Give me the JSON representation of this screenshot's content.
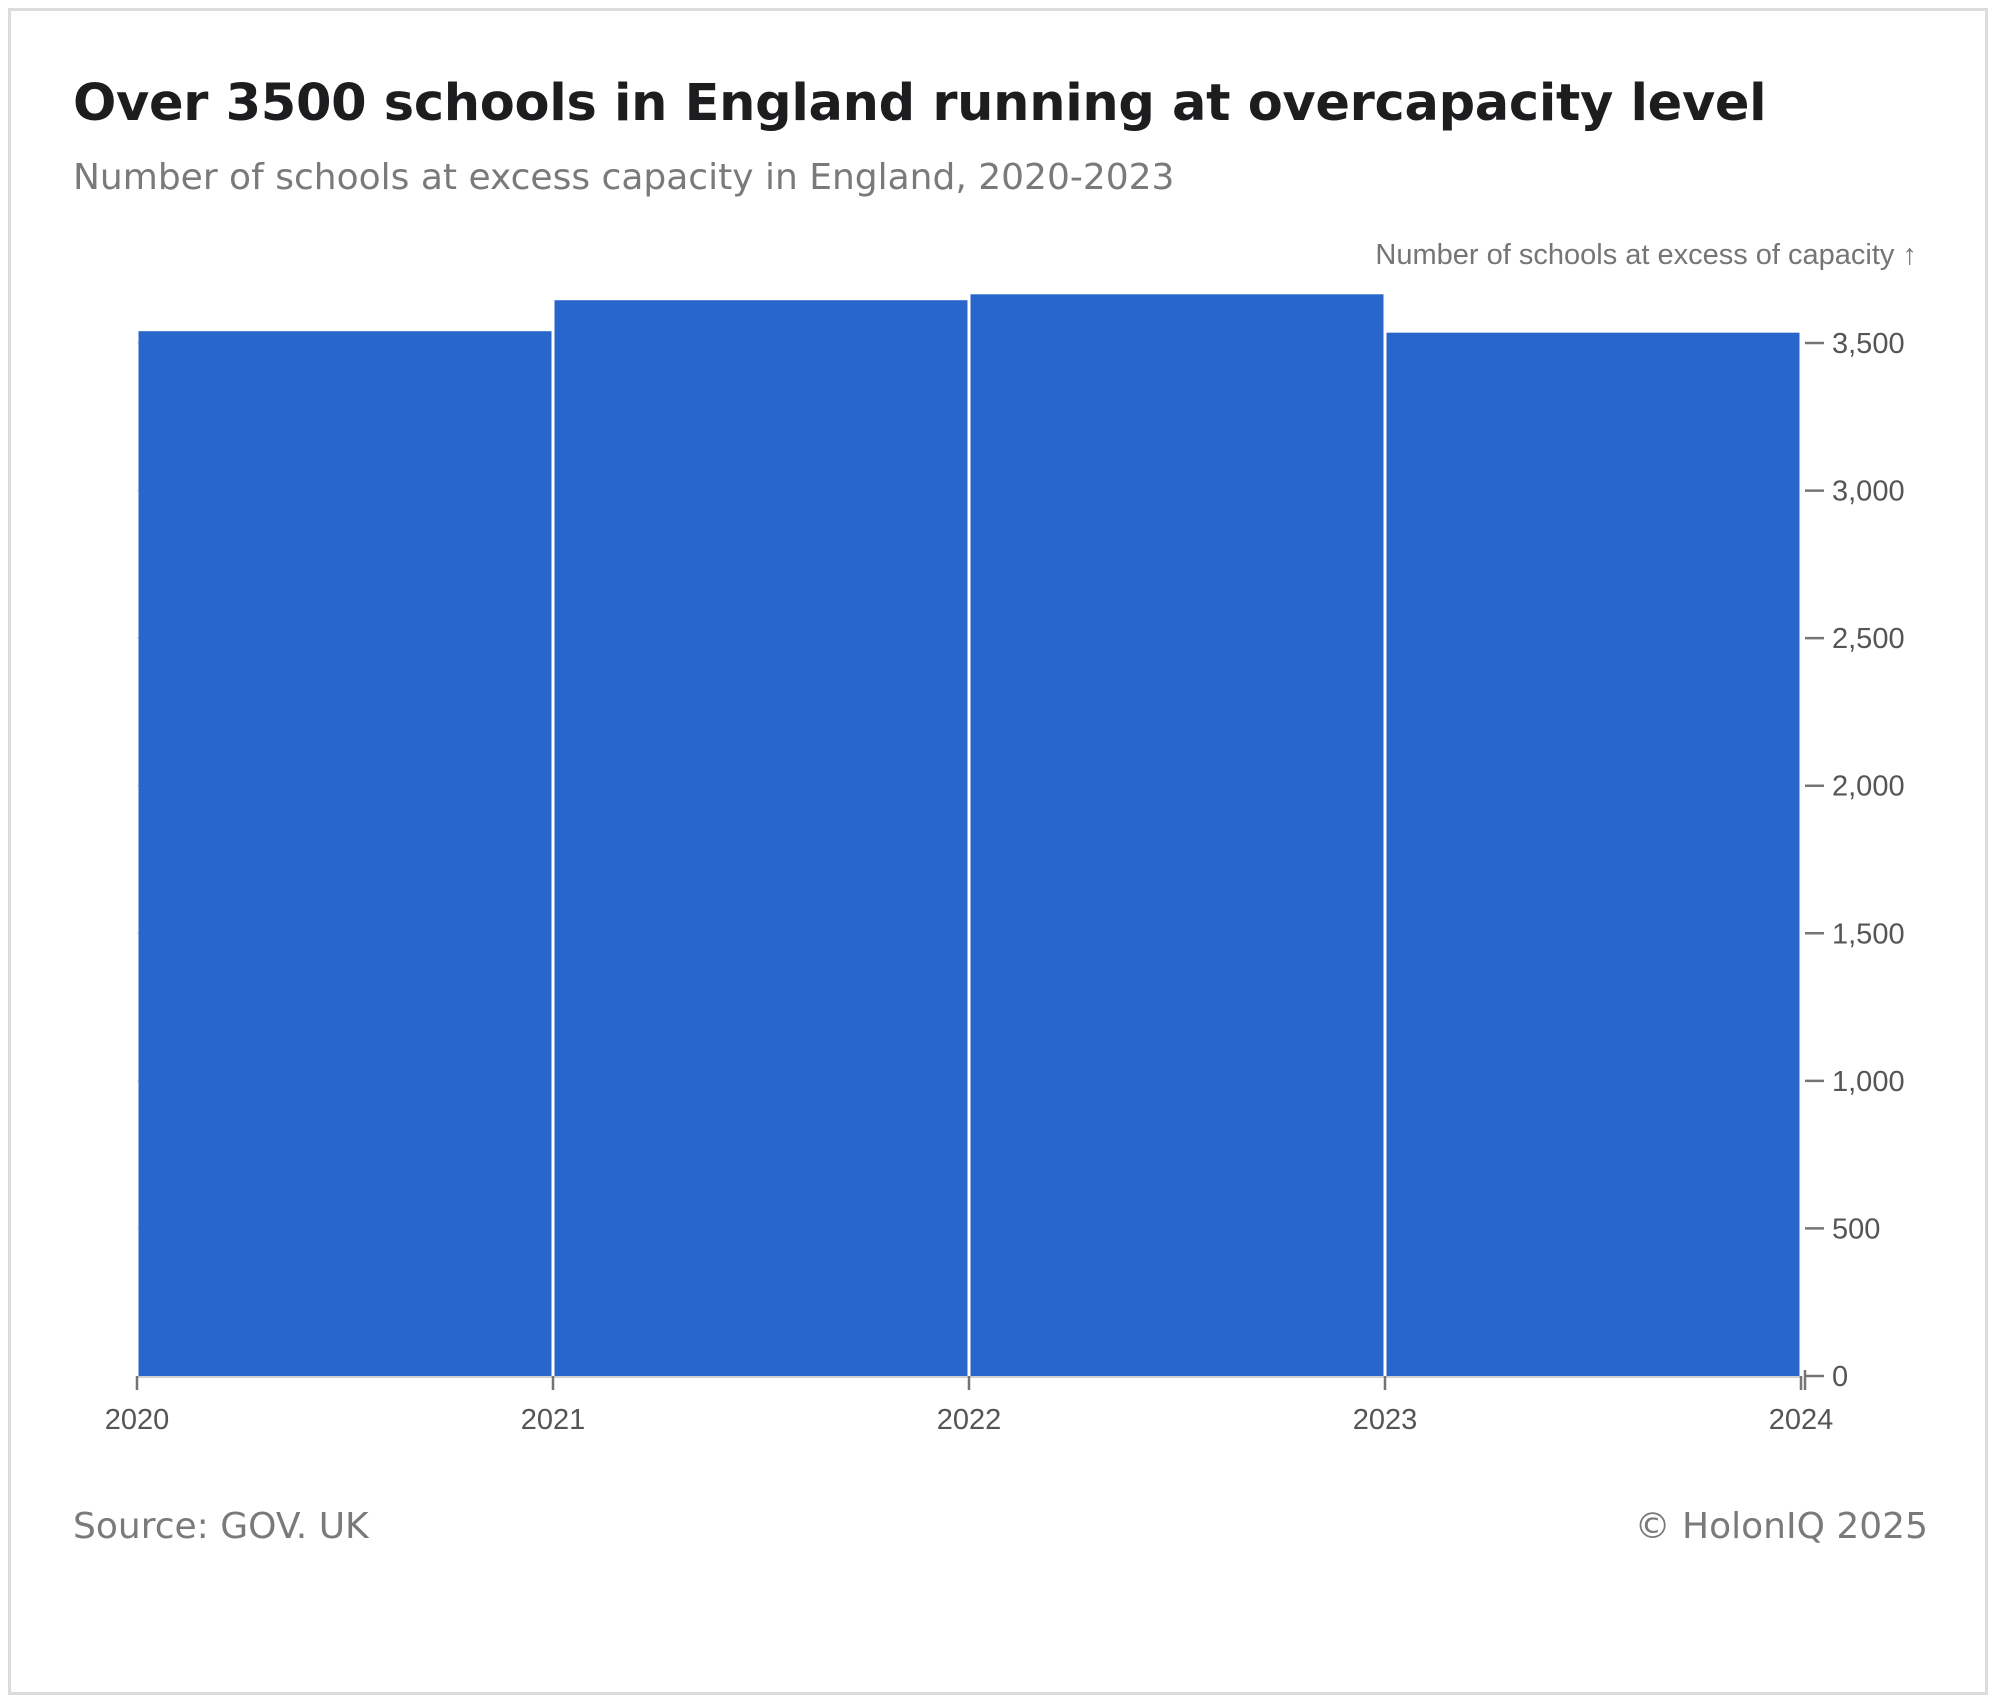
{
  "header": {
    "title": "Over 3500 schools in England running at overcapacity level",
    "subtitle": "Number of schools at excess capacity in England, 2020-2023"
  },
  "footer": {
    "source": "Source: GOV. UK",
    "copyright": "© HolonIQ 2025"
  },
  "colors": {
    "bar": "#2966cc",
    "axis": "#757575",
    "grid": "#e6e6e6",
    "tick_text": "#555555"
  },
  "chart_data": {
    "type": "bar",
    "title": "Over 3500 schools in England running at overcapacity level",
    "subtitle": "Number of schools at excess capacity in England, 2020-2023",
    "xlabel": "",
    "ylabel": "Number of schools at excess of capacity ↑",
    "x_bin_edges": [
      2020,
      2021,
      2022,
      2023,
      2024
    ],
    "x_ticks": [
      "2020",
      "2021",
      "2022",
      "2023",
      "2024"
    ],
    "categories": [
      "2020",
      "2021",
      "2022",
      "2023"
    ],
    "values": [
      3540,
      3645,
      3665,
      3535
    ],
    "ylim": [
      0,
      3500
    ],
    "y_ticks": [
      0,
      500,
      1000,
      1500,
      2000,
      2500,
      3000,
      3500
    ],
    "y_tick_labels": [
      "0",
      "500",
      "1,000",
      "1,500",
      "2,000",
      "2,500",
      "3,000",
      "3,500"
    ],
    "y_axis_position": "right",
    "grid": true
  }
}
